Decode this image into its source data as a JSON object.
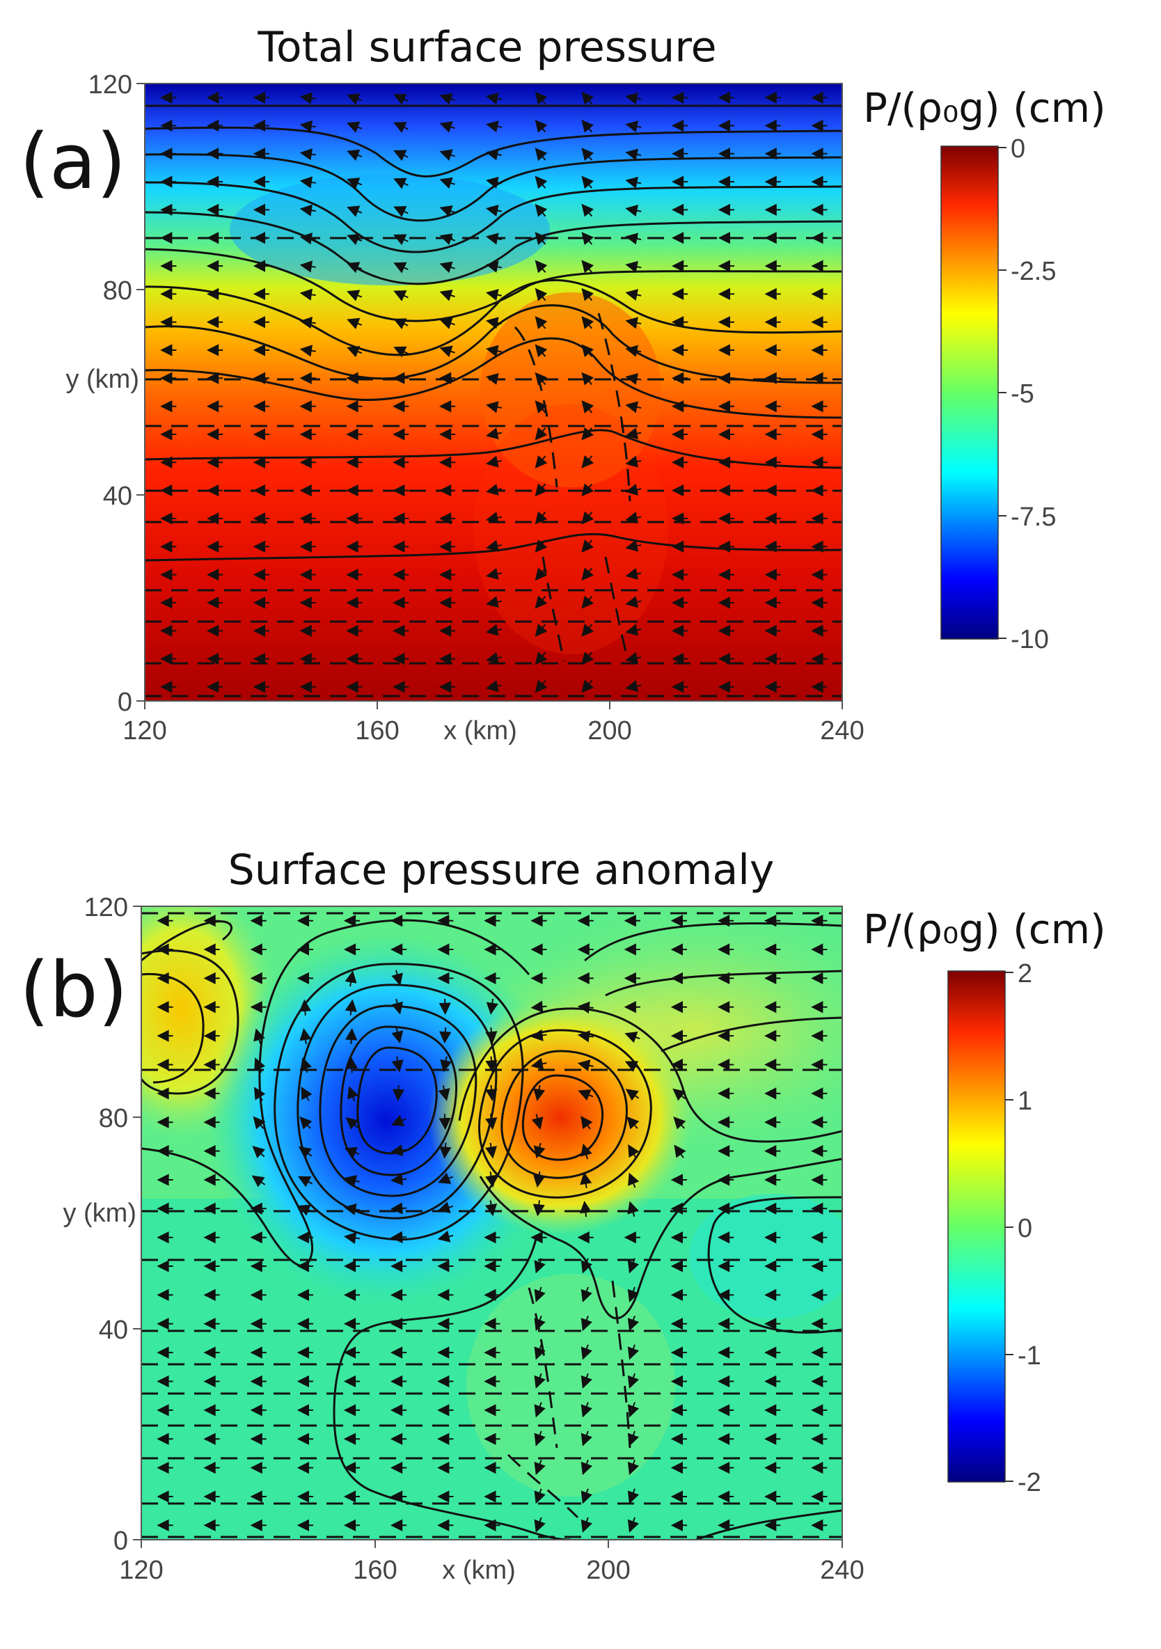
{
  "chart_data": [
    {
      "type": "heatmap",
      "panel_label": "(a)",
      "title": "Total surface pressure",
      "xlabel": "x (km)",
      "ylabel": "y (km)",
      "xlim": [
        120,
        240
      ],
      "ylim": [
        0,
        120
      ],
      "x_ticks": [
        "120",
        "160",
        "200",
        "240"
      ],
      "y_ticks": [
        "0",
        "40",
        "80",
        "120"
      ],
      "colorbar": {
        "label": "P/(ρ₀g) (cm)",
        "range": [
          -10,
          0
        ],
        "ticks": [
          "0",
          "-2.5",
          "-5",
          "-7.5",
          "-10"
        ],
        "colormap": "jet"
      },
      "overlays": [
        "solid contour lines",
        "dashed contour lines",
        "velocity arrows (westward)"
      ]
    },
    {
      "type": "heatmap",
      "panel_label": "(b)",
      "title": "Surface pressure anomaly",
      "xlabel": "x (km)",
      "ylabel": "y (km)",
      "xlim": [
        120,
        240
      ],
      "ylim": [
        0,
        120
      ],
      "x_ticks": [
        "120",
        "160",
        "200",
        "240"
      ],
      "y_ticks": [
        "0",
        "40",
        "80",
        "120"
      ],
      "colorbar": {
        "label": "P/(ρ₀g) (cm)",
        "range": [
          -2,
          2
        ],
        "ticks": [
          "2",
          "1",
          "0",
          "-1",
          "-2"
        ],
        "colormap": "jet"
      },
      "features": [
        {
          "kind": "low",
          "x_km": 162,
          "y_km": 87,
          "value_cm": -2
        },
        {
          "kind": "high",
          "x_km": 192,
          "y_km": 78,
          "value_cm": 1.4
        },
        {
          "kind": "high",
          "x_km": 124,
          "y_km": 95,
          "value_cm": 0.7
        }
      ],
      "overlays": [
        "solid contour lines",
        "dashed contour lines",
        "velocity arrows (westward)"
      ]
    }
  ]
}
